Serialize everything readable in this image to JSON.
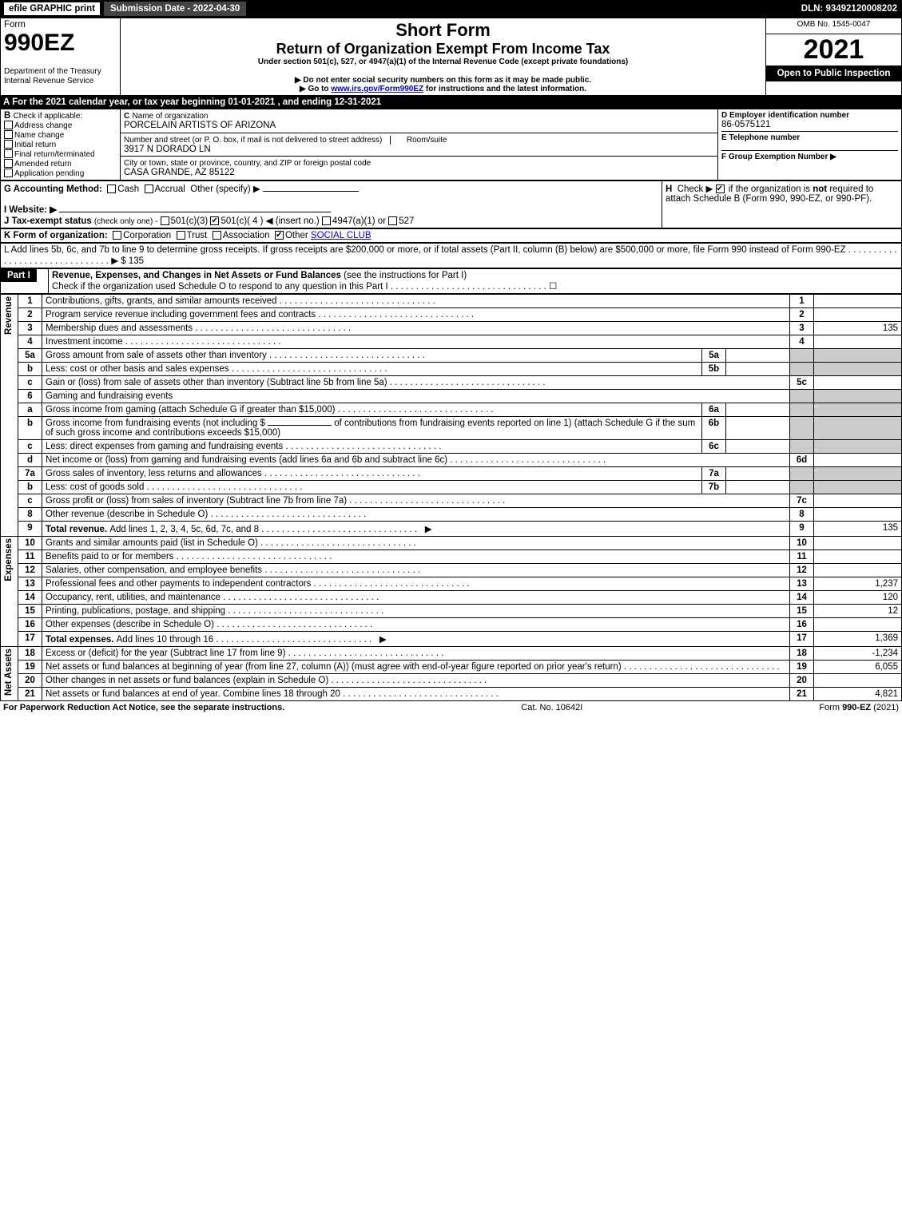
{
  "topbar": {
    "efile": "efile GRAPHIC print",
    "submission": "Submission Date - 2022-04-30",
    "dln": "DLN: 93492120008202"
  },
  "header": {
    "form_word": "Form",
    "form_num": "990EZ",
    "dept": "Department of the Treasury\nInternal Revenue Service",
    "short_form": "Short Form",
    "title": "Return of Organization Exempt From Income Tax",
    "under": "Under section 501(c), 527, or 4947(a)(1) of the Internal Revenue Code (except private foundations)",
    "no_ssn": "▶ Do not enter social security numbers on this form as it may be made public.",
    "goto": "▶ Go to ",
    "goto_link": "www.irs.gov/Form990EZ",
    "goto_after": " for instructions and the latest information.",
    "omb": "OMB No. 1545-0047",
    "year": "2021",
    "open": "Open to Public Inspection"
  },
  "line_a": "A  For the 2021 calendar year, or tax year beginning 01-01-2021 , and ending 12-31-2021",
  "box_b": {
    "title": "B",
    "label": "Check if applicable:",
    "opts": [
      "Address change",
      "Name change",
      "Initial return",
      "Final return/terminated",
      "Amended return",
      "Application pending"
    ]
  },
  "box_c": {
    "c_label": "C",
    "name_label": "Name of organization",
    "name": "PORCELAIN ARTISTS OF ARIZONA",
    "street_label": "Number and street (or P. O. box, if mail is not delivered to street address)",
    "room_label": "Room/suite",
    "street": "3917 N DORADO LN",
    "city_label": "City or town, state or province, country, and ZIP or foreign postal code",
    "city": "CASA GRANDE, AZ  85122"
  },
  "box_d": {
    "label": "D Employer identification number",
    "value": "86-0575121"
  },
  "box_e": {
    "label": "E Telephone number",
    "value": ""
  },
  "box_f": {
    "label": "F Group Exemption Number  ▶",
    "value": ""
  },
  "line_g": {
    "label": "G Accounting Method:",
    "cash": "Cash",
    "accrual": "Accrual",
    "other": "Other (specify) ▶"
  },
  "line_h": {
    "label": "H",
    "text1": "Check ▶",
    "text2": "if the organization is ",
    "not": "not",
    "text3": " required to attach Schedule B (Form 990, 990-EZ, or 990-PF)."
  },
  "line_i": {
    "label": "I Website: ▶"
  },
  "line_j": {
    "label": "J Tax-exempt status",
    "small": "(check only one) -",
    "o1": "501(c)(3)",
    "o2": "501(c)( 4 ) ◀ (insert no.)",
    "o3": "4947(a)(1) or",
    "o4": "527"
  },
  "line_k": {
    "label": "K Form of organization:",
    "opts": [
      "Corporation",
      "Trust",
      "Association",
      "Other"
    ],
    "other_val": "SOCIAL CLUB"
  },
  "line_l": {
    "text": "L Add lines 5b, 6c, and 7b to line 9 to determine gross receipts. If gross receipts are $200,000 or more, or if total assets (Part II, column (B) below) are $500,000 or more, file Form 990 instead of Form 990-EZ",
    "arrow": "▶ $",
    "value": "135"
  },
  "part1": {
    "label": "Part I",
    "title": "Revenue, Expenses, and Changes in Net Assets or Fund Balances",
    "instr": "(see the instructions for Part I)",
    "check_line": "Check if the organization used Schedule O to respond to any question in this Part I",
    "check_val": "☐"
  },
  "rows": {
    "revenue": [
      {
        "n": "1",
        "t": "Contributions, gifts, grants, and similar amounts received",
        "r": "1",
        "v": ""
      },
      {
        "n": "2",
        "t": "Program service revenue including government fees and contracts",
        "r": "2",
        "v": ""
      },
      {
        "n": "3",
        "t": "Membership dues and assessments",
        "r": "3",
        "v": "135"
      },
      {
        "n": "4",
        "t": "Investment income",
        "r": "4",
        "v": ""
      }
    ],
    "r5a": {
      "n": "5a",
      "t": "Gross amount from sale of assets other than inventory",
      "s": "5a"
    },
    "r5b": {
      "n": "b",
      "t": "Less: cost or other basis and sales expenses",
      "s": "5b"
    },
    "r5c": {
      "n": "c",
      "t": "Gain or (loss) from sale of assets other than inventory (Subtract line 5b from line 5a)",
      "r": "5c",
      "v": ""
    },
    "r6": {
      "n": "6",
      "t": "Gaming and fundraising events"
    },
    "r6a": {
      "n": "a",
      "t": "Gross income from gaming (attach Schedule G if greater than $15,000)",
      "s": "6a"
    },
    "r6b": {
      "n": "b",
      "t1": "Gross income from fundraising events (not including $",
      "t2": "of contributions from fundraising events reported on line 1) (attach Schedule G if the sum of such gross income and contributions exceeds $15,000)",
      "s": "6b"
    },
    "r6c": {
      "n": "c",
      "t": "Less: direct expenses from gaming and fundraising events",
      "s": "6c"
    },
    "r6d": {
      "n": "d",
      "t": "Net income or (loss) from gaming and fundraising events (add lines 6a and 6b and subtract line 6c)",
      "r": "6d",
      "v": ""
    },
    "r7a": {
      "n": "7a",
      "t": "Gross sales of inventory, less returns and allowances",
      "s": "7a"
    },
    "r7b": {
      "n": "b",
      "t": "Less: cost of goods sold",
      "s": "7b"
    },
    "r7c": {
      "n": "c",
      "t": "Gross profit or (loss) from sales of inventory (Subtract line 7b from line 7a)",
      "r": "7c",
      "v": ""
    },
    "r8": {
      "n": "8",
      "t": "Other revenue (describe in Schedule O)",
      "r": "8",
      "v": ""
    },
    "r9": {
      "n": "9",
      "t": "Total revenue. ",
      "t2": "Add lines 1, 2, 3, 4, 5c, 6d, 7c, and 8",
      "r": "9",
      "v": "135"
    },
    "expenses": [
      {
        "n": "10",
        "t": "Grants and similar amounts paid (list in Schedule O)",
        "r": "10",
        "v": ""
      },
      {
        "n": "11",
        "t": "Benefits paid to or for members",
        "r": "11",
        "v": ""
      },
      {
        "n": "12",
        "t": "Salaries, other compensation, and employee benefits",
        "r": "12",
        "v": ""
      },
      {
        "n": "13",
        "t": "Professional fees and other payments to independent contractors",
        "r": "13",
        "v": "1,237"
      },
      {
        "n": "14",
        "t": "Occupancy, rent, utilities, and maintenance",
        "r": "14",
        "v": "120"
      },
      {
        "n": "15",
        "t": "Printing, publications, postage, and shipping",
        "r": "15",
        "v": "12"
      },
      {
        "n": "16",
        "t": "Other expenses (describe in Schedule O)",
        "r": "16",
        "v": ""
      },
      {
        "n": "17",
        "t": "Total expenses. ",
        "t2": "Add lines 10 through 16",
        "r": "17",
        "v": "1,369"
      }
    ],
    "netassets": [
      {
        "n": "18",
        "t": "Excess or (deficit) for the year (Subtract line 17 from line 9)",
        "r": "18",
        "v": "-1,234"
      },
      {
        "n": "19",
        "t": "Net assets or fund balances at beginning of year (from line 27, column (A)) (must agree with end-of-year figure reported on prior year's return)",
        "r": "19",
        "v": "6,055"
      },
      {
        "n": "20",
        "t": "Other changes in net assets or fund balances (explain in Schedule O)",
        "r": "20",
        "v": ""
      },
      {
        "n": "21",
        "t": "Net assets or fund balances at end of year. Combine lines 18 through 20",
        "r": "21",
        "v": "4,821"
      }
    ]
  },
  "footer": {
    "left": "For Paperwork Reduction Act Notice, see the separate instructions.",
    "mid": "Cat. No. 10642I",
    "right_a": "Form ",
    "right_b": "990-EZ",
    "right_c": " (2021)"
  },
  "colors": {
    "black": "#000000",
    "white": "#ffffff",
    "gray": "#cccccc",
    "link": "#0000cc"
  }
}
